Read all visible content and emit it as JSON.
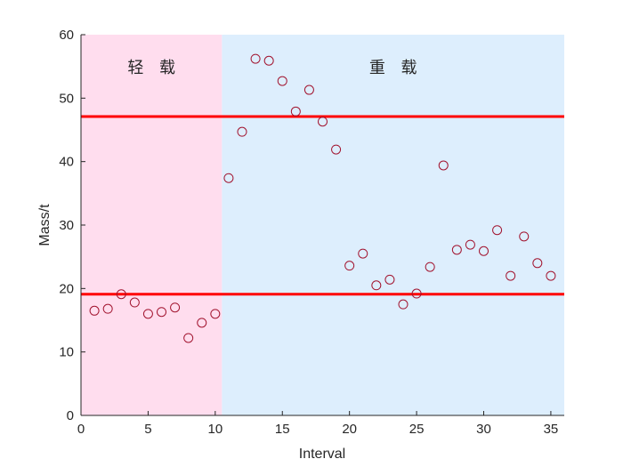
{
  "chart_data": {
    "type": "scatter",
    "xlabel": "Interval",
    "ylabel": "Mass/t",
    "xlim": [
      0,
      36
    ],
    "ylim": [
      0,
      60
    ],
    "xticks": [
      0,
      5,
      10,
      15,
      20,
      25,
      30,
      35
    ],
    "yticks": [
      0,
      10,
      20,
      30,
      40,
      50,
      60
    ],
    "grid": false,
    "regions": [
      {
        "label": "轻 载",
        "x_start": 0,
        "x_end": 10.5,
        "color": "#FFDDEE"
      },
      {
        "label": "重 载",
        "x_start": 10.5,
        "x_end": 36,
        "color": "#DDEEFD"
      }
    ],
    "hlines": [
      {
        "y": 47.1,
        "color": "#FF0000"
      },
      {
        "y": 19.1,
        "color": "#FF0000"
      }
    ],
    "marker": {
      "shape": "open-circle",
      "color": "#A2142F"
    },
    "x": [
      1,
      2,
      3,
      4,
      5,
      6,
      7,
      8,
      9,
      10,
      11,
      12,
      13,
      14,
      15,
      16,
      17,
      18,
      19,
      20,
      21,
      22,
      23,
      24,
      25,
      26,
      27,
      28,
      29,
      30,
      31,
      32,
      33,
      34,
      35
    ],
    "y": [
      16.5,
      16.8,
      19.1,
      17.8,
      16.0,
      16.3,
      17.0,
      12.2,
      14.6,
      16.0,
      37.4,
      44.7,
      56.2,
      55.9,
      52.7,
      47.9,
      51.3,
      46.3,
      41.9,
      23.6,
      25.5,
      20.5,
      21.4,
      17.5,
      19.2,
      23.4,
      39.4,
      26.1,
      26.9,
      25.9,
      29.2,
      22.0,
      28.2,
      24.0,
      22.0
    ]
  }
}
